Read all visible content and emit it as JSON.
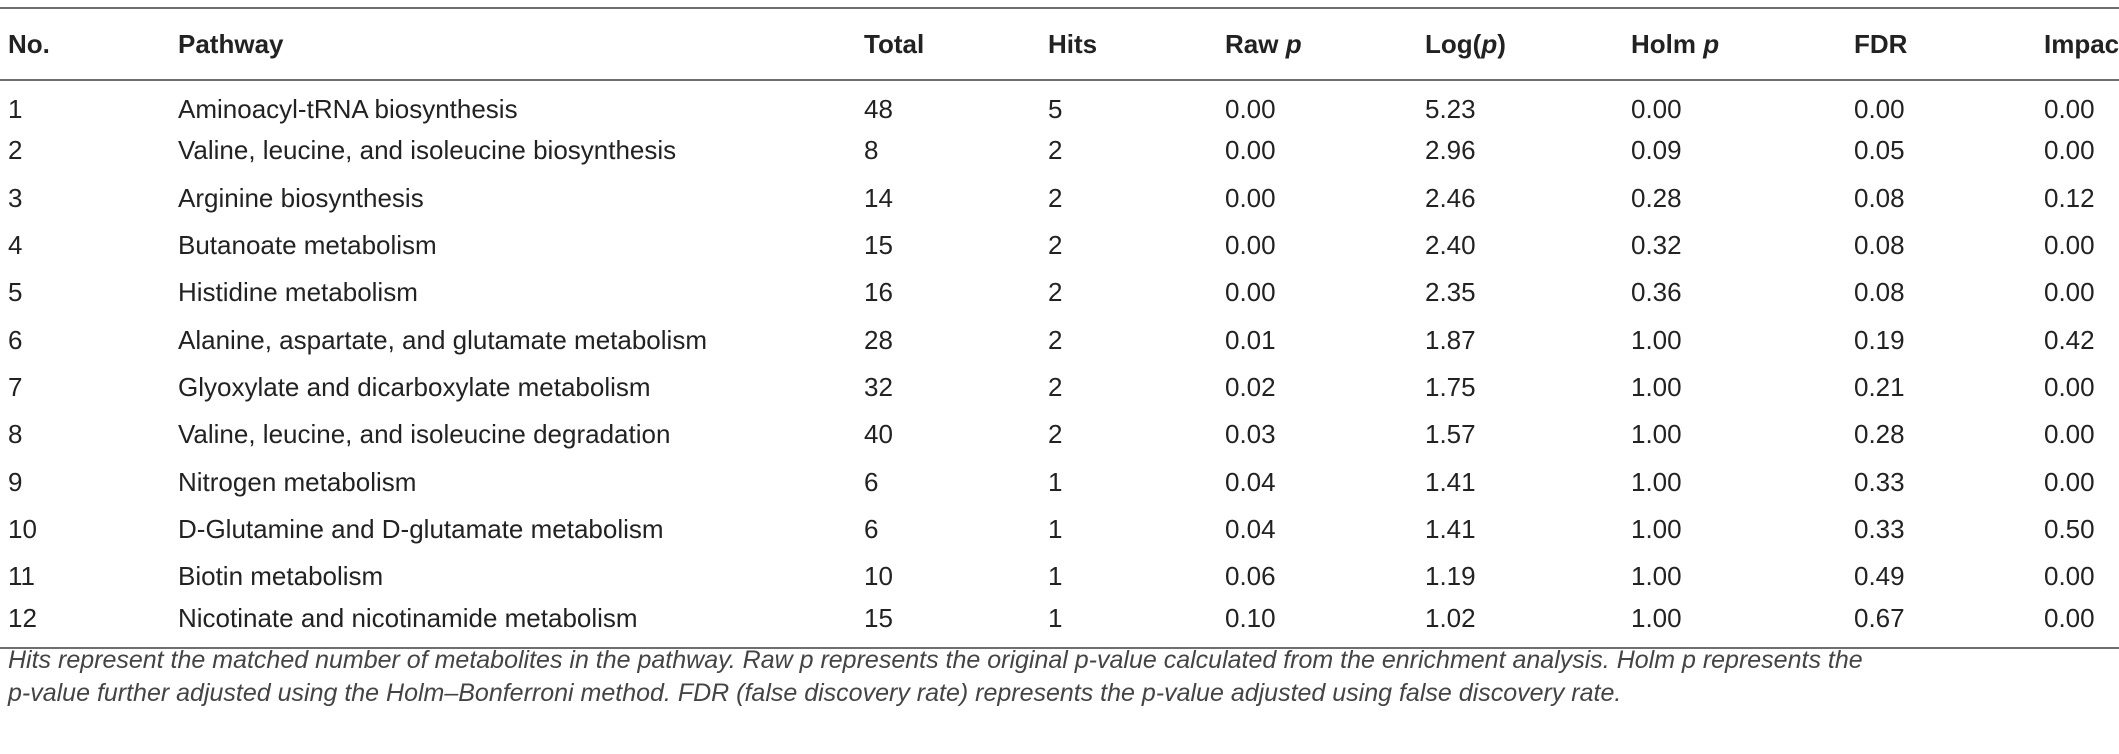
{
  "table": {
    "headers": {
      "no": "No.",
      "pathway": "Pathway",
      "total": "Total",
      "hits": "Hits",
      "raw_p_main": "Raw ",
      "raw_p_ital": "p",
      "log_p_pre": "Log(",
      "log_p_ital": "p",
      "log_p_post": ")",
      "holm_p_main": "Holm ",
      "holm_p_ital": "p",
      "fdr": "FDR",
      "impact": "Impact"
    },
    "rows": [
      {
        "no": "1",
        "pathway": "Aminoacyl-tRNA biosynthesis",
        "total": "48",
        "hits": "5",
        "raw_p": "0.00",
        "log_p": "5.23",
        "holm_p": "0.00",
        "fdr": "0.00",
        "impact": "0.00"
      },
      {
        "no": "2",
        "pathway": "Valine, leucine, and isoleucine biosynthesis",
        "total": "8",
        "hits": "2",
        "raw_p": "0.00",
        "log_p": "2.96",
        "holm_p": "0.09",
        "fdr": "0.05",
        "impact": "0.00"
      },
      {
        "no": "3",
        "pathway": "Arginine biosynthesis",
        "total": "14",
        "hits": "2",
        "raw_p": "0.00",
        "log_p": "2.46",
        "holm_p": "0.28",
        "fdr": "0.08",
        "impact": "0.12"
      },
      {
        "no": "4",
        "pathway": "Butanoate metabolism",
        "total": "15",
        "hits": "2",
        "raw_p": "0.00",
        "log_p": "2.40",
        "holm_p": "0.32",
        "fdr": "0.08",
        "impact": "0.00"
      },
      {
        "no": "5",
        "pathway": "Histidine metabolism",
        "total": "16",
        "hits": "2",
        "raw_p": "0.00",
        "log_p": "2.35",
        "holm_p": "0.36",
        "fdr": "0.08",
        "impact": "0.00"
      },
      {
        "no": "6",
        "pathway": "Alanine, aspartate, and glutamate metabolism",
        "total": "28",
        "hits": "2",
        "raw_p": "0.01",
        "log_p": "1.87",
        "holm_p": "1.00",
        "fdr": "0.19",
        "impact": "0.42"
      },
      {
        "no": "7",
        "pathway": "Glyoxylate and dicarboxylate metabolism",
        "total": "32",
        "hits": "2",
        "raw_p": "0.02",
        "log_p": "1.75",
        "holm_p": "1.00",
        "fdr": "0.21",
        "impact": "0.00"
      },
      {
        "no": "8",
        "pathway": "Valine, leucine, and isoleucine degradation",
        "total": "40",
        "hits": "2",
        "raw_p": "0.03",
        "log_p": "1.57",
        "holm_p": "1.00",
        "fdr": "0.28",
        "impact": "0.00"
      },
      {
        "no": "9",
        "pathway": "Nitrogen metabolism",
        "total": "6",
        "hits": "1",
        "raw_p": "0.04",
        "log_p": "1.41",
        "holm_p": "1.00",
        "fdr": "0.33",
        "impact": "0.00"
      },
      {
        "no": "10",
        "pathway_parts": [
          "D",
          "-Glutamine and ",
          "D",
          "-glutamate metabolism"
        ],
        "total": "6",
        "hits": "1",
        "raw_p": "0.04",
        "log_p": "1.41",
        "holm_p": "1.00",
        "fdr": "0.33",
        "impact": "0.50"
      },
      {
        "no": "11",
        "pathway": "Biotin metabolism",
        "total": "10",
        "hits": "1",
        "raw_p": "0.06",
        "log_p": "1.19",
        "holm_p": "1.00",
        "fdr": "0.49",
        "impact": "0.00"
      },
      {
        "no": "12",
        "pathway": "Nicotinate and nicotinamide metabolism",
        "total": "15",
        "hits": "1",
        "raw_p": "0.10",
        "log_p": "1.02",
        "holm_p": "1.00",
        "fdr": "0.67",
        "impact": "0.00"
      }
    ]
  },
  "caption": {
    "line1": "Hits represent the matched number of metabolites in the pathway. Raw p represents the original p-value calculated from the enrichment analysis. Holm p represents the",
    "line2": "p-value further adjusted using the Holm–Bonferroni method. FDR (false discovery rate) represents the p-value adjusted using false discovery rate."
  }
}
